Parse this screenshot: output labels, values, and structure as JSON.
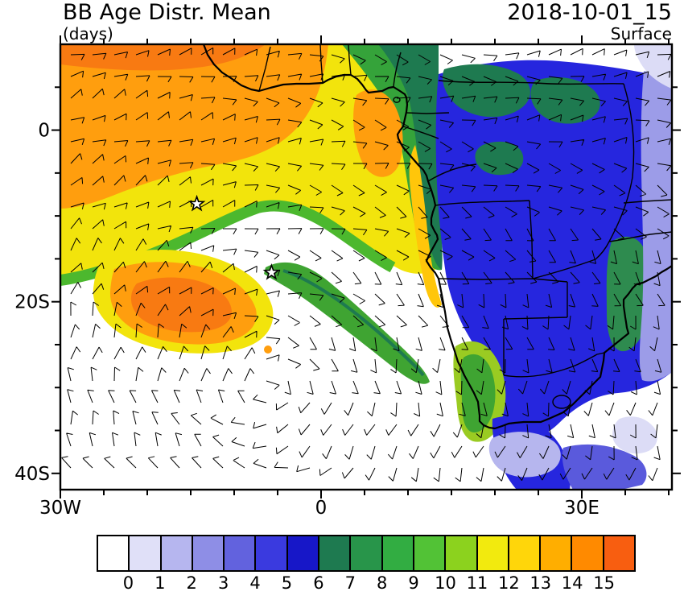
{
  "header": {
    "title": "BB Age Distr. Mean",
    "units": "(days)",
    "datetime": "2018-10-01_15",
    "level": "Surface"
  },
  "axes": {
    "x_ticks": [
      {
        "label": "30W",
        "lon": -30
      },
      {
        "label": "0",
        "lon": 0
      },
      {
        "label": "30E",
        "lon": 30
      }
    ],
    "y_ticks": [
      {
        "label": "0",
        "lat": 0
      },
      {
        "label": "20S",
        "lat": -20
      },
      {
        "label": "40S",
        "lat": -40
      }
    ]
  },
  "chart_data": {
    "type": "heatmap",
    "title": "BB Age Distr. Mean",
    "units": "days",
    "datetime": "2018-10-01_15",
    "level": "Surface",
    "geo_extent": {
      "lon_min": "30W",
      "lon_max": "40E",
      "lat_min": "42S",
      "lat_max": "10N"
    },
    "x_tick_labels": [
      "30W",
      "0",
      "30E"
    ],
    "y_tick_labels": [
      "0",
      "20S",
      "40S"
    ],
    "colorbar": {
      "labels": [
        "0",
        "1",
        "2",
        "3",
        "4",
        "5",
        "6",
        "7",
        "8",
        "9",
        "10",
        "11",
        "12",
        "13",
        "14",
        "15"
      ],
      "colors": [
        "#FFFFFF",
        "#E0E0F8",
        "#B6B6EF",
        "#8E8EE6",
        "#6262DE",
        "#3A3ADF",
        "#1717C8",
        "#1E7A50",
        "#28954A",
        "#32AD42",
        "#52C236",
        "#8CD21E",
        "#F2EA0E",
        "#FFD60A",
        "#FFAE00",
        "#FF8A00",
        "#F85E10"
      ]
    },
    "overlays": [
      "wind barbs",
      "coastlines",
      "country borders",
      "star markers"
    ],
    "markers": [
      {
        "type": "star",
        "lon": -14.3,
        "lat": -8.6
      },
      {
        "type": "star",
        "lon": -5.7,
        "lat": -16.6
      }
    ],
    "regions_summary": [
      {
        "region": "western tropical South Atlantic (west of 0, 10N-20S)",
        "age_days": "12-15 (oldest smoke, orange)"
      },
      {
        "region": "orange plume lobe near 20W-10W, 15S-22S",
        "age_days": "13-15"
      },
      {
        "region": "eastern Atlantic / Gulf of Guinea coastal band",
        "age_days": "7-12 (green to yellow)"
      },
      {
        "region": "central and southern Africa interior (Congo basin to South Africa)",
        "age_days": "0-5 (fresh smoke, blue)"
      },
      {
        "region": "eastern edge 35E-40E and top-right corner",
        "age_days": "1-3 (pale blue)"
      },
      {
        "region": "far South Atlantic and ocean south of 25S",
        "age_days": "below 0.5 (white)"
      }
    ]
  }
}
